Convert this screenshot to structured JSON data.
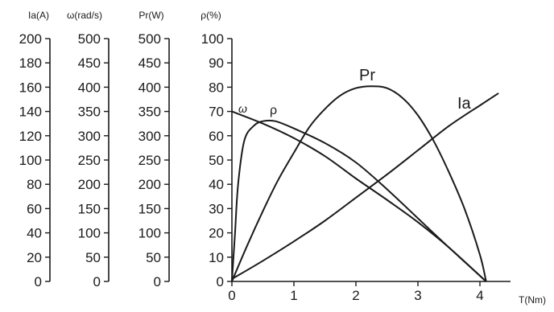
{
  "chart_data": {
    "type": "line",
    "xlabel": "T(Nm)",
    "x_ticks": [
      0,
      1,
      2,
      3,
      4
    ],
    "xlim": [
      0,
      4.2
    ],
    "grid": false,
    "legend": "none",
    "axes": [
      {
        "label": "Ia(A)",
        "ticks": [
          0,
          20,
          40,
          60,
          80,
          100,
          120,
          140,
          160,
          180,
          200
        ],
        "ylim": [
          0,
          200
        ]
      },
      {
        "label": "ω(rad/s)",
        "ticks": [
          0,
          50,
          100,
          150,
          200,
          250,
          300,
          350,
          400,
          450,
          500
        ],
        "ylim": [
          0,
          500
        ]
      },
      {
        "label": "Pr(W)",
        "ticks": [
          0,
          50,
          100,
          150,
          200,
          250,
          300,
          350,
          400,
          450,
          500
        ],
        "ylim": [
          0,
          500
        ]
      },
      {
        "label": "ρ(%)",
        "ticks": [
          0,
          10,
          20,
          30,
          40,
          50,
          60,
          70,
          80,
          90,
          100
        ],
        "ylim": [
          0,
          100
        ]
      }
    ],
    "series": [
      {
        "name": "ω",
        "axis": 1,
        "points": [
          [
            0,
            350
          ],
          [
            0.5,
            325
          ],
          [
            1,
            295
          ],
          [
            1.5,
            258
          ],
          [
            2,
            212
          ],
          [
            2.5,
            168
          ],
          [
            3,
            122
          ],
          [
            3.5,
            70
          ],
          [
            4.1,
            0
          ]
        ]
      },
      {
        "name": "ρ",
        "axis": 3,
        "points": [
          [
            0,
            0
          ],
          [
            0.05,
            20
          ],
          [
            0.1,
            40
          ],
          [
            0.2,
            58
          ],
          [
            0.35,
            64
          ],
          [
            0.5,
            66
          ],
          [
            0.7,
            66
          ],
          [
            1,
            63
          ],
          [
            1.5,
            57
          ],
          [
            2,
            49
          ],
          [
            2.5,
            38
          ],
          [
            3,
            26
          ],
          [
            3.5,
            14
          ],
          [
            3.8,
            7
          ],
          [
            4.1,
            0
          ]
        ]
      },
      {
        "name": "Pr",
        "axis": 2,
        "points": [
          [
            0,
            0
          ],
          [
            0.25,
            75
          ],
          [
            0.5,
            145
          ],
          [
            0.75,
            210
          ],
          [
            1,
            265
          ],
          [
            1.25,
            318
          ],
          [
            1.5,
            355
          ],
          [
            1.75,
            383
          ],
          [
            2,
            398
          ],
          [
            2.25,
            402
          ],
          [
            2.5,
            398
          ],
          [
            2.75,
            378
          ],
          [
            3,
            342
          ],
          [
            3.25,
            290
          ],
          [
            3.5,
            225
          ],
          [
            3.75,
            150
          ],
          [
            4,
            55
          ],
          [
            4.1,
            0
          ]
        ]
      },
      {
        "name": "Ia",
        "axis": 0,
        "points": [
          [
            0,
            2
          ],
          [
            0.5,
            17
          ],
          [
            1,
            33
          ],
          [
            1.5,
            50
          ],
          [
            2,
            69
          ],
          [
            2.5,
            88
          ],
          [
            3,
            108
          ],
          [
            3.5,
            128
          ],
          [
            4,
            145
          ],
          [
            4.3,
            155
          ]
        ]
      }
    ]
  }
}
